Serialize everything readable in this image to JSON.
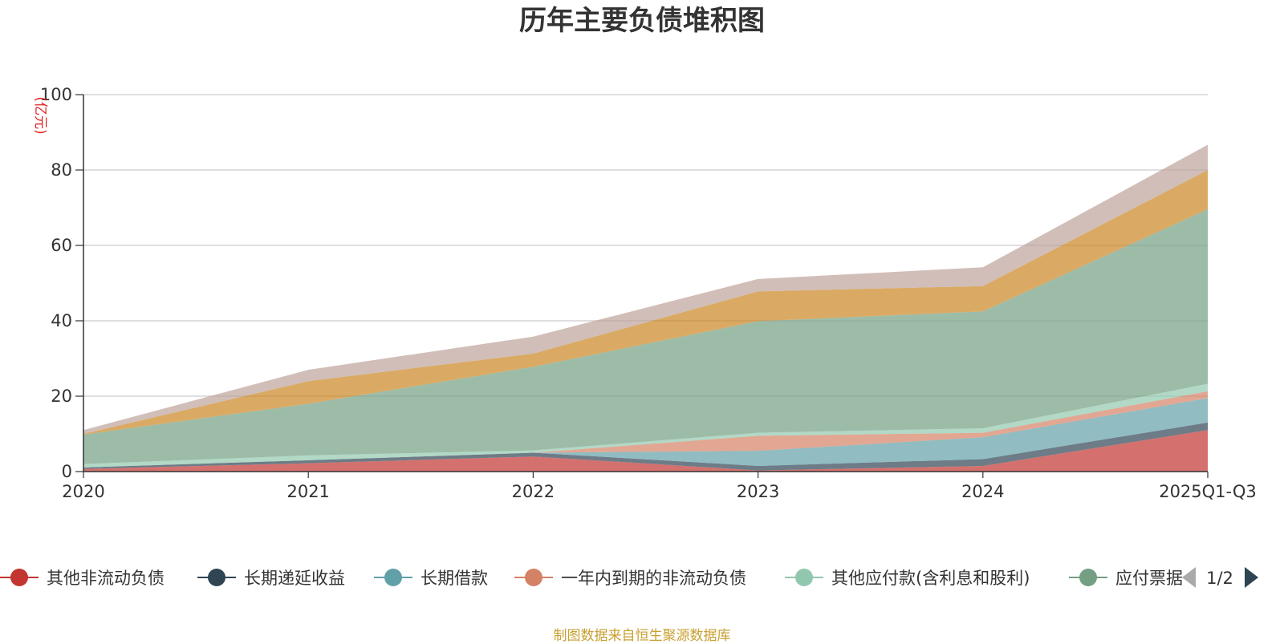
{
  "chart_data": {
    "type": "area",
    "stacked": true,
    "title": "历年主要负债堆积图",
    "y_unit": "(亿元)",
    "ylim": [
      0,
      100
    ],
    "y_ticks": [
      0,
      20,
      40,
      60,
      80,
      100
    ],
    "categories": [
      "2020",
      "2021",
      "2022",
      "2023",
      "2024",
      "2025Q1-Q3"
    ],
    "grid": true,
    "series": [
      {
        "name": "其他非流动负债",
        "color": "#c23531",
        "values": [
          0.7,
          2.2,
          4.0,
          0.3,
          1.5,
          11.0
        ]
      },
      {
        "name": "长期递延收益",
        "color": "#2f4554",
        "values": [
          0.4,
          0.8,
          1.0,
          1.2,
          1.8,
          2.0
        ]
      },
      {
        "name": "长期借款",
        "color": "#61a0a8",
        "values": [
          0,
          0,
          0,
          4.0,
          5.8,
          6.5
        ]
      },
      {
        "name": "一年内到期的非流动负债",
        "color": "#d48265",
        "values": [
          0,
          0,
          0,
          4.0,
          1.2,
          1.8
        ]
      },
      {
        "name": "其他应付款(含利息和股利)",
        "color": "#91c7ae",
        "values": [
          0.9,
          1.3,
          0.6,
          0.8,
          1.2,
          2.0
        ]
      },
      {
        "name": "应付票据",
        "color": "#749f83",
        "values": [
          7.8,
          13.7,
          22.2,
          29.6,
          31.0,
          46.3
        ]
      },
      {
        "name": "",
        "color": "#ca8622",
        "values": [
          0.2,
          6.0,
          3.5,
          7.9,
          6.7,
          10.4
        ]
      },
      {
        "name": "",
        "color": "#bda29a",
        "values": [
          1.0,
          3.0,
          4.5,
          3.3,
          5.0,
          6.7
        ]
      }
    ]
  },
  "legend": {
    "items": [
      "其他非流动负债",
      "长期递延收益",
      "长期借款",
      "一年内到期的非流动负债",
      "其他应付款(含利息和股利)",
      "应付票据"
    ],
    "page": "1/2"
  },
  "source": "制图数据来自恒生聚源数据库"
}
